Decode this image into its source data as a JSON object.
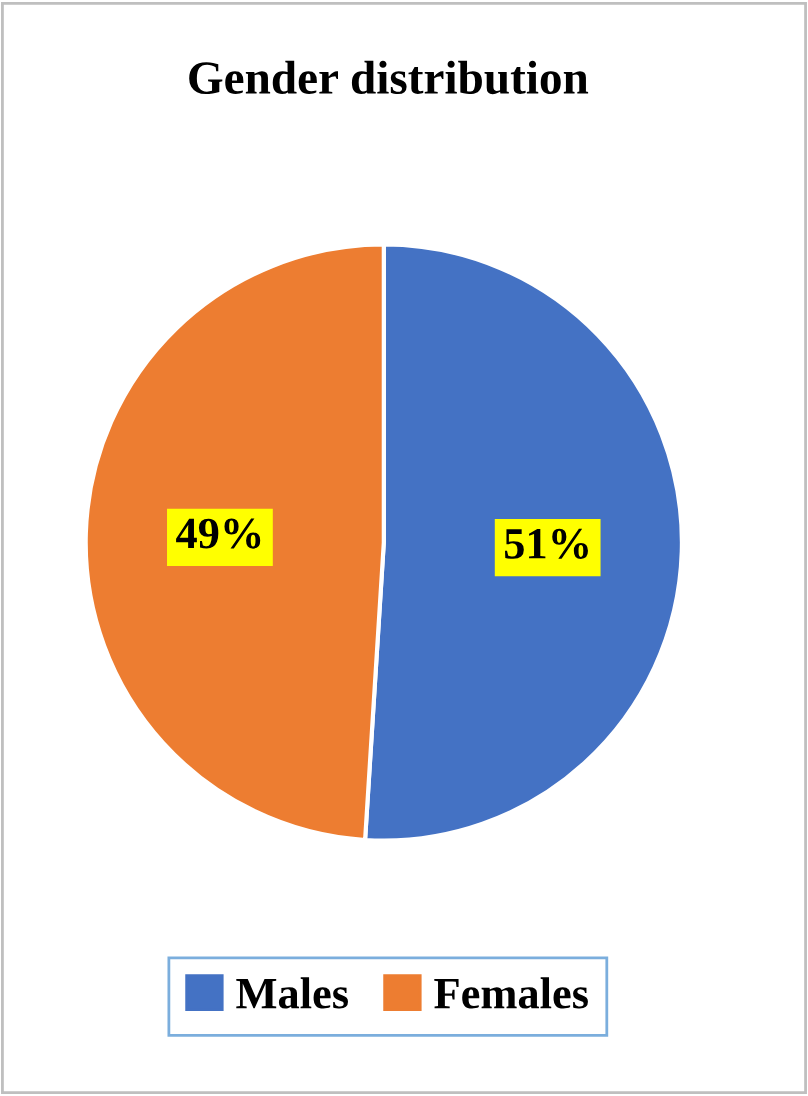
{
  "chart_data": {
    "type": "pie",
    "title": "Gender distribution",
    "categories": [
      "Males",
      "Females"
    ],
    "values": [
      51,
      49
    ],
    "colors": [
      "#4472c4",
      "#ed7d31"
    ],
    "value_labels": [
      "51%",
      "49%"
    ],
    "legend": "bottom"
  }
}
